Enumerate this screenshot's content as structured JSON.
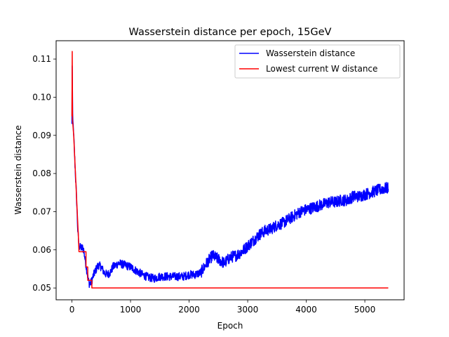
{
  "chart_data": {
    "type": "line",
    "title": "Wasserstein distance per epoch, 15GeV",
    "xlabel": "Epoch",
    "ylabel": "Wasserstein distance",
    "xlim": [
      -270,
      5670
    ],
    "ylim": [
      0.0469,
      0.1148
    ],
    "xticks": [
      0,
      1000,
      2000,
      3000,
      4000,
      5000
    ],
    "xtick_labels": [
      "0",
      "1000",
      "2000",
      "3000",
      "4000",
      "5000"
    ],
    "yticks": [
      0.05,
      0.06,
      0.07,
      0.08,
      0.09,
      0.1,
      0.11
    ],
    "ytick_labels": [
      "0.05",
      "0.06",
      "0.07",
      "0.08",
      "0.09",
      "0.10",
      "0.11"
    ],
    "grid": false,
    "legend_position": "upper right",
    "series": [
      {
        "name": "Wasserstein distance",
        "color": "#0000ff",
        "noise": 0.0011,
        "x": [
          0,
          5,
          10,
          15,
          20,
          30,
          50,
          80,
          100,
          120,
          150,
          180,
          200,
          220,
          240,
          260,
          280,
          300,
          330,
          360,
          400,
          450,
          500,
          550,
          600,
          650,
          700,
          800,
          900,
          1000,
          1100,
          1200,
          1300,
          1400,
          1500,
          1600,
          1700,
          1800,
          1900,
          2000,
          2100,
          2200,
          2300,
          2400,
          2500,
          2600,
          2700,
          2800,
          2900,
          3000,
          3100,
          3200,
          3300,
          3400,
          3500,
          3600,
          3700,
          3800,
          3900,
          4000,
          4100,
          4200,
          4300,
          4400,
          4500,
          4600,
          4700,
          4800,
          4900,
          5000,
          5100,
          5200,
          5300,
          5400
        ],
        "y": [
          0.093,
          0.112,
          0.097,
          0.094,
          0.093,
          0.09,
          0.083,
          0.073,
          0.065,
          0.061,
          0.0605,
          0.0605,
          0.06,
          0.058,
          0.056,
          0.054,
          0.052,
          0.051,
          0.0515,
          0.053,
          0.0545,
          0.056,
          0.0555,
          0.054,
          0.0535,
          0.054,
          0.0555,
          0.0565,
          0.056,
          0.0555,
          0.0545,
          0.0535,
          0.0528,
          0.0525,
          0.053,
          0.053,
          0.053,
          0.053,
          0.053,
          0.0535,
          0.0535,
          0.054,
          0.0565,
          0.0585,
          0.0575,
          0.0565,
          0.058,
          0.0585,
          0.0595,
          0.061,
          0.0625,
          0.064,
          0.065,
          0.0655,
          0.0665,
          0.067,
          0.068,
          0.069,
          0.07,
          0.0705,
          0.071,
          0.0715,
          0.072,
          0.0725,
          0.0725,
          0.073,
          0.073,
          0.074,
          0.074,
          0.0745,
          0.075,
          0.0755,
          0.076,
          0.0762
        ]
      },
      {
        "name": "Lowest current W distance",
        "color": "#ff0000",
        "x": [
          0,
          5,
          10,
          30,
          60,
          90,
          110,
          120,
          240,
          240,
          270,
          270,
          340,
          340,
          5400
        ],
        "y": [
          0.095,
          0.112,
          0.094,
          0.09,
          0.08,
          0.07,
          0.0635,
          0.0595,
          0.0595,
          0.0555,
          0.0555,
          0.052,
          0.052,
          0.05,
          0.05
        ]
      }
    ]
  }
}
